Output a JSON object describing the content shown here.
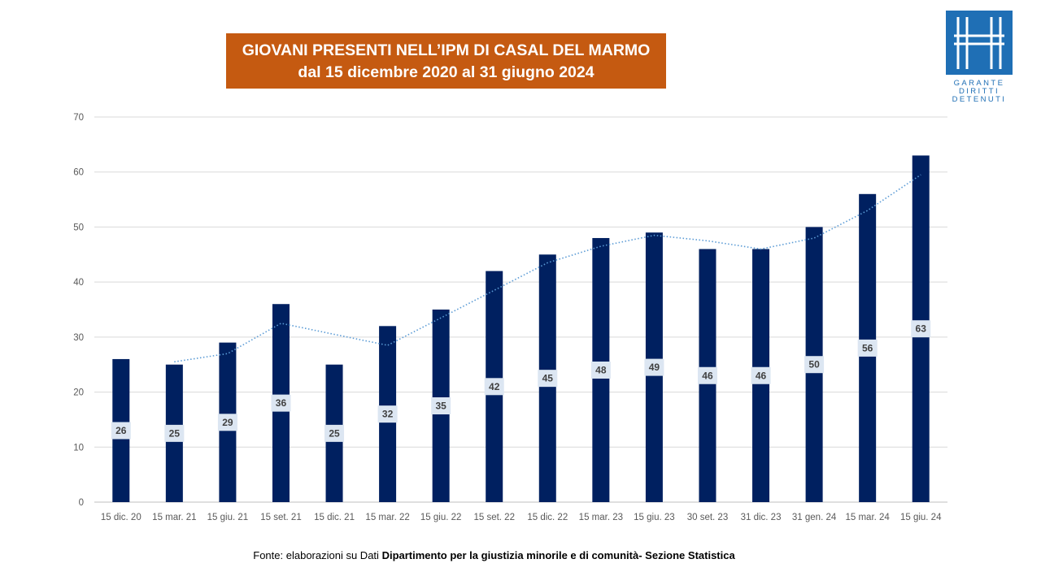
{
  "header": {
    "title_line1": "GIOVANI PRESENTI NELL’IPM DI CASAL DEL MARMO",
    "title_line2": "dal 15 dicembre 2020 al 31 giugno 2024"
  },
  "logo": {
    "line1": "GARANTE",
    "line2": "DIRITTI",
    "line3": "DETENUTI",
    "color": "#1f6fb5"
  },
  "footer": {
    "prefix": "Fonte:",
    "text_plain": "elaborazioni su Dati",
    "text_bold": "Dipartimento per la giustizia minorile e di comunità- Sezione Statistica"
  },
  "colors": {
    "bar": "#002060",
    "trend": "#5b9bd5",
    "title_bg": "#c55a11",
    "label_bg": "#dce6f2"
  },
  "chart_data": {
    "type": "bar",
    "title": "GIOVANI PRESENTI NELL’IPM DI CASAL DEL MARMO",
    "subtitle": "dal 15 dicembre 2020 al 31 giugno 2024",
    "xlabel": "",
    "ylabel": "",
    "ylim": [
      0,
      70
    ],
    "yticks": [
      0,
      10,
      20,
      30,
      40,
      50,
      60,
      70
    ],
    "grid": true,
    "legend": "none",
    "trendline": "moving average (2 periods), dotted",
    "categories": [
      "15 dic. 20",
      "15 mar. 21",
      "15 giu. 21",
      "15 set. 21",
      "15 dic. 21",
      "15 mar. 22",
      "15 giu. 22",
      "15 set. 22",
      "15 dic. 22",
      "15 mar. 23",
      "15 giu. 23",
      "30 set. 23",
      "31 dic. 23",
      "31 gen. 24",
      "15 mar. 24",
      "15 giu. 24"
    ],
    "values": [
      26,
      25,
      29,
      36,
      25,
      32,
      35,
      42,
      45,
      48,
      49,
      46,
      46,
      50,
      56,
      63
    ],
    "data_labels": [
      "26",
      "25",
      "29",
      "36",
      "25",
      "32",
      "35",
      "42",
      "45",
      "48",
      "49",
      "46",
      "46",
      "50",
      "56",
      "63"
    ]
  }
}
